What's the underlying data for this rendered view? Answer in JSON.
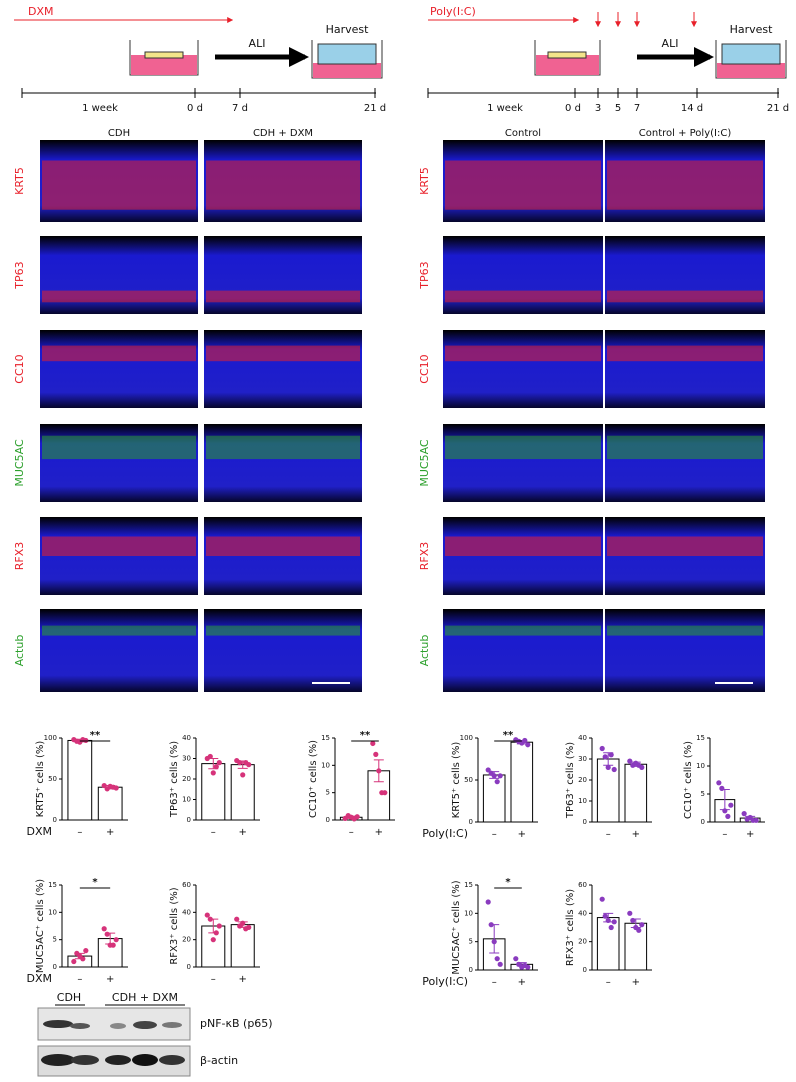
{
  "panel_a": {
    "treatment": "DXM",
    "step": "ALI",
    "endpoint": "Harvest",
    "timeline": [
      "1 week",
      "0 d",
      "7 d",
      "21 d"
    ]
  },
  "panel_b": {
    "treatment": "Poly(I:C)",
    "step": "ALI",
    "endpoint": "Harvest",
    "timeline": [
      "1 week",
      "0 d",
      "3",
      "5",
      "7",
      "14 d",
      "21 d"
    ]
  },
  "panel_c": {
    "columns": [
      "CDH",
      "CDH + DXM"
    ],
    "markers": [
      {
        "label": "KRT5",
        "color": "#e8202a"
      },
      {
        "label": "TP63",
        "color": "#e8202a"
      },
      {
        "label": "CC10",
        "color": "#e8202a"
      },
      {
        "label": "MUC5AC",
        "color": "#2ca02c"
      },
      {
        "label": "RFX3",
        "color": "#e8202a"
      },
      {
        "label": "Actub",
        "color": "#2ca02c"
      }
    ]
  },
  "panel_d": {
    "columns": [
      "Control",
      "Control + Poly(I:C)"
    ],
    "markers": [
      {
        "label": "KRT5",
        "color": "#e8202a"
      },
      {
        "label": "TP63",
        "color": "#e8202a"
      },
      {
        "label": "CC10",
        "color": "#e8202a"
      },
      {
        "label": "MUC5AC",
        "color": "#2ca02c"
      },
      {
        "label": "RFX3",
        "color": "#e8202a"
      },
      {
        "label": "Actub",
        "color": "#2ca02c"
      }
    ]
  },
  "chart_data": [
    {
      "type": "bar",
      "y_label": "KRT5⁺ cells (%)",
      "x_label": "DXM",
      "categories": [
        "–",
        "+"
      ],
      "values": [
        97,
        40
      ],
      "errors": [
        1.5,
        2
      ],
      "points": [
        [
          98,
          96,
          95,
          98,
          97
        ],
        [
          42,
          38,
          41,
          40,
          39
        ]
      ],
      "point_color": "#d6337a",
      "ylim": [
        0,
        100
      ],
      "yticks": [
        0,
        50,
        100
      ],
      "significance": "**"
    },
    {
      "type": "bar",
      "y_label": "TP63⁺ cells (%)",
      "categories": [
        "–",
        "+"
      ],
      "values": [
        27.5,
        27
      ],
      "errors": [
        2.5,
        1.8
      ],
      "points": [
        [
          30,
          31,
          23,
          26,
          28
        ],
        [
          29,
          28,
          22,
          28,
          27
        ]
      ],
      "point_color": "#d6337a",
      "ylim": [
        0,
        40
      ],
      "yticks": [
        0,
        10,
        20,
        30,
        40
      ]
    },
    {
      "type": "bar",
      "y_label": "CC10⁺ cells (%)",
      "categories": [
        "–",
        "+"
      ],
      "values": [
        0.5,
        9
      ],
      "errors": [
        0.2,
        2
      ],
      "points": [
        [
          0.3,
          0.8,
          0.5,
          0.2,
          0.6
        ],
        [
          14,
          12,
          9,
          5,
          5
        ]
      ],
      "point_color": "#d6337a",
      "ylim": [
        0,
        15
      ],
      "yticks": [
        0,
        5,
        10,
        15
      ],
      "significance": "**"
    },
    {
      "type": "bar",
      "y_label": "MUC5AC⁺ cells (%)",
      "x_label": "DXM",
      "categories": [
        "–",
        "+"
      ],
      "values": [
        2,
        5.2
      ],
      "errors": [
        0.5,
        1
      ],
      "points": [
        [
          1,
          2.5,
          2,
          1.5,
          3
        ],
        [
          7,
          6,
          4,
          4,
          5
        ]
      ],
      "point_color": "#d6337a",
      "ylim": [
        0,
        15
      ],
      "yticks": [
        0,
        5,
        10,
        15
      ],
      "significance": "*"
    },
    {
      "type": "bar",
      "y_label": "RFX3⁺ cells (%)",
      "categories": [
        "–",
        "+"
      ],
      "values": [
        30,
        31
      ],
      "errors": [
        5,
        2
      ],
      "points": [
        [
          38,
          35,
          20,
          25,
          30
        ],
        [
          35,
          30,
          32,
          28,
          29
        ]
      ],
      "point_color": "#d6337a",
      "ylim": [
        0,
        60
      ],
      "yticks": [
        0,
        20,
        40,
        60
      ]
    },
    {
      "type": "bar",
      "y_label": "KRT5⁺ cells (%)",
      "x_label": "Poly(I:C)",
      "categories": [
        "–",
        "+"
      ],
      "values": [
        56,
        95
      ],
      "errors": [
        4,
        2
      ],
      "points": [
        [
          62,
          58,
          55,
          48,
          55
        ],
        [
          98,
          96,
          94,
          97,
          92
        ]
      ],
      "point_color": "#8a3bbf",
      "ylim": [
        0,
        100
      ],
      "yticks": [
        0,
        50,
        100
      ],
      "significance": "**"
    },
    {
      "type": "bar",
      "y_label": "TP63⁺ cells (%)",
      "categories": [
        "–",
        "+"
      ],
      "values": [
        30,
        27.5
      ],
      "errors": [
        3,
        1
      ],
      "points": [
        [
          35,
          31,
          26,
          32,
          25
        ],
        [
          29,
          27,
          28,
          27,
          26
        ]
      ],
      "point_color": "#8a3bbf",
      "ylim": [
        0,
        40
      ],
      "yticks": [
        0,
        10,
        20,
        30,
        40
      ]
    },
    {
      "type": "bar",
      "y_label": "CC10⁺ cells (%)",
      "categories": [
        "–",
        "+"
      ],
      "values": [
        4,
        0.7
      ],
      "errors": [
        1.8,
        0.3
      ],
      "points": [
        [
          7,
          6,
          2,
          1,
          3
        ],
        [
          1.5,
          0.5,
          0.8,
          0.3,
          0.3
        ]
      ],
      "point_color": "#8a3bbf",
      "ylim": [
        0,
        15
      ],
      "yticks": [
        0,
        5,
        10,
        15
      ]
    },
    {
      "type": "bar",
      "y_label": "MUC5AC⁺ cells (%)",
      "x_label": "Poly(I:C)",
      "categories": [
        "–",
        "+"
      ],
      "values": [
        5.5,
        1
      ],
      "errors": [
        2.5,
        0.3
      ],
      "points": [
        [
          12,
          8,
          5,
          2,
          1
        ],
        [
          2,
          1,
          0.5,
          0.8,
          0.5
        ]
      ],
      "point_color": "#8a3bbf",
      "ylim": [
        0,
        15
      ],
      "yticks": [
        0,
        5,
        10,
        15
      ],
      "significance": "*"
    },
    {
      "type": "bar",
      "y_label": "RFX3⁺ cells (%)",
      "categories": [
        "–",
        "+"
      ],
      "values": [
        37,
        33
      ],
      "errors": [
        3,
        3
      ],
      "points": [
        [
          50,
          38,
          35,
          30,
          34
        ],
        [
          40,
          35,
          30,
          28,
          32
        ]
      ],
      "point_color": "#8a3bbf",
      "ylim": [
        0,
        60
      ],
      "yticks": [
        0,
        20,
        40,
        60
      ]
    }
  ],
  "blot": {
    "lanes": [
      "CDH",
      "CDH + DXM"
    ],
    "proteins": [
      "pNF-κB (p65)",
      "β-actin"
    ]
  }
}
